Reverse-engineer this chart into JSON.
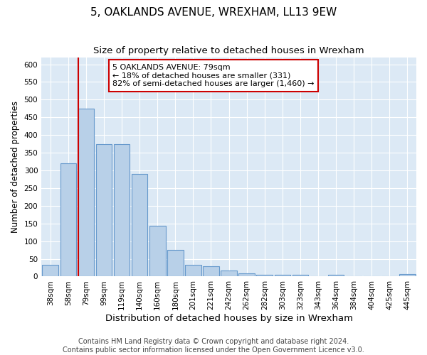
{
  "title": "5, OAKLANDS AVENUE, WREXHAM, LL13 9EW",
  "subtitle": "Size of property relative to detached houses in Wrexham",
  "xlabel": "Distribution of detached houses by size in Wrexham",
  "ylabel": "Number of detached properties",
  "categories": [
    "38sqm",
    "58sqm",
    "79sqm",
    "99sqm",
    "119sqm",
    "140sqm",
    "160sqm",
    "180sqm",
    "201sqm",
    "221sqm",
    "242sqm",
    "262sqm",
    "282sqm",
    "303sqm",
    "323sqm",
    "343sqm",
    "364sqm",
    "384sqm",
    "404sqm",
    "425sqm",
    "445sqm"
  ],
  "values": [
    33,
    320,
    475,
    375,
    375,
    290,
    143,
    76,
    33,
    30,
    17,
    8,
    5,
    5,
    4,
    1,
    5,
    0,
    0,
    0,
    6
  ],
  "bar_color": "#b8d0e8",
  "bar_edge_color": "#6699cc",
  "red_line_x": 2,
  "annotation_line1": "5 OAKLANDS AVENUE: 79sqm",
  "annotation_line2": "← 18% of detached houses are smaller (331)",
  "annotation_line3": "82% of semi-detached houses are larger (1,460) →",
  "annotation_box_color": "#ffffff",
  "annotation_box_edge_color": "#cc0000",
  "footer_line1": "Contains HM Land Registry data © Crown copyright and database right 2024.",
  "footer_line2": "Contains public sector information licensed under the Open Government Licence v3.0.",
  "ylim": [
    0,
    620
  ],
  "yticks": [
    0,
    50,
    100,
    150,
    200,
    250,
    300,
    350,
    400,
    450,
    500,
    550,
    600
  ],
  "plot_bg_color": "#dce9f5",
  "title_fontsize": 11,
  "subtitle_fontsize": 9.5,
  "xlabel_fontsize": 9.5,
  "ylabel_fontsize": 8.5,
  "tick_fontsize": 7.5,
  "annotation_fontsize": 8,
  "footer_fontsize": 7
}
